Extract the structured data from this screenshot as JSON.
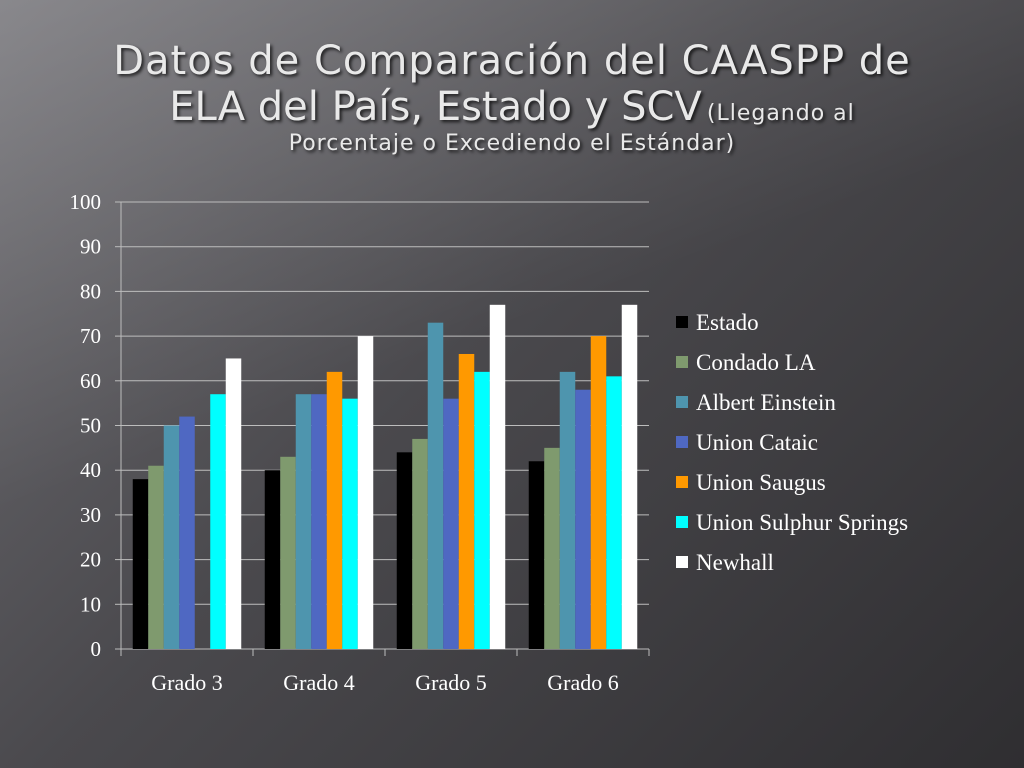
{
  "slide": {
    "title_line1": "Datos de Comparación del CAASPP de",
    "title_line2": "ELA del País, Estado y SCV",
    "subtitle_part1": "(Llegando al",
    "subtitle_part2": "Porcentaje o Excediendo el Estándar)"
  },
  "chart_data": {
    "type": "bar",
    "categories": [
      "Grado 3",
      "Grado 4",
      "Grado 5",
      "Grado 6"
    ],
    "series": [
      {
        "name": "Estado",
        "color": "#000000",
        "values": [
          38,
          40,
          44,
          42
        ]
      },
      {
        "name": "Condado LA",
        "color": "#7f9a6e",
        "values": [
          41,
          43,
          47,
          45
        ]
      },
      {
        "name": "Albert Einstein",
        "color": "#4e95ae",
        "values": [
          50,
          57,
          73,
          62
        ]
      },
      {
        "name": "Union Cataic",
        "color": "#4f68c2",
        "values": [
          52,
          57,
          56,
          58
        ]
      },
      {
        "name": "Union Saugus",
        "color": "#ff9900",
        "values": [
          0,
          62,
          66,
          70
        ]
      },
      {
        "name": "Union Sulphur Springs",
        "color": "#00ffff",
        "values": [
          57,
          56,
          62,
          61
        ]
      },
      {
        "name": "Newhall",
        "color": "#ffffff",
        "values": [
          65,
          70,
          77,
          77
        ]
      }
    ],
    "ylim": [
      0,
      100
    ],
    "yticks": [
      0,
      10,
      20,
      30,
      40,
      50,
      60,
      70,
      80,
      90,
      100
    ],
    "grid": true,
    "legend": "right"
  }
}
